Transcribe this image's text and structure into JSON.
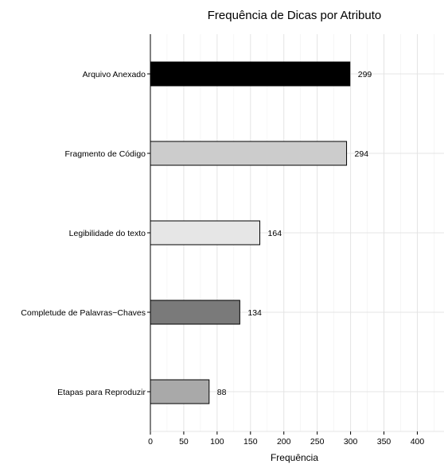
{
  "chart_data": {
    "type": "bar",
    "orientation": "horizontal",
    "title": "Frequência de Dicas por Atributo",
    "xlabel": "Frequência",
    "ylabel": "",
    "categories": [
      "Arquivo Anexado",
      "Fragmento de Código",
      "Legibilidade do texto",
      "Completude de Palavras−Chaves",
      "Etapas para Reproduzir"
    ],
    "values": [
      299,
      294,
      164,
      134,
      88
    ],
    "colors": [
      "#000000",
      "#cccccc",
      "#e6e6e6",
      "#7a7a7a",
      "#a9a9a9"
    ],
    "xlim": [
      0,
      440
    ],
    "xticks": [
      0,
      50,
      100,
      150,
      200,
      250,
      300,
      350,
      400
    ],
    "grid": true,
    "data_labels": true
  }
}
